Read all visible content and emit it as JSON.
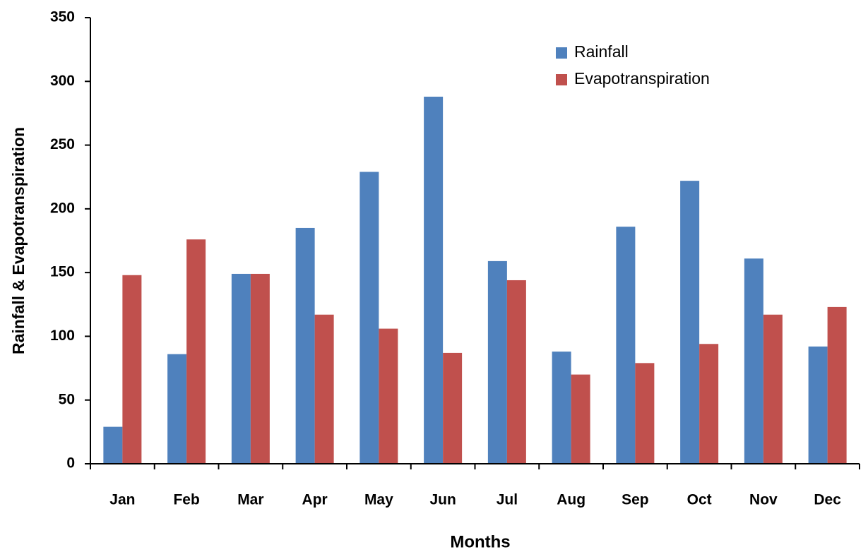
{
  "chart_data": {
    "type": "bar",
    "x_label": "Months",
    "y_label": "Rainfall & Evapotranspiration",
    "categories": [
      "Jan",
      "Feb",
      "Mar",
      "Apr",
      "May",
      "Jun",
      "Jul",
      "Aug",
      "Sep",
      "Oct",
      "Nov",
      "Dec"
    ],
    "series": [
      {
        "name": "Rainfall",
        "color": "#4f81bd",
        "values": [
          29,
          86,
          149,
          185,
          229,
          288,
          159,
          88,
          186,
          222,
          161,
          92
        ]
      },
      {
        "name": "Evapotranspiration",
        "color": "#c0504d",
        "values": [
          148,
          176,
          149,
          117,
          106,
          87,
          144,
          70,
          79,
          94,
          117,
          123
        ]
      }
    ],
    "ylim": [
      0,
      350
    ],
    "yticks": [
      0,
      50,
      100,
      150,
      200,
      250,
      300,
      350
    ],
    "grid": false,
    "legend": "top-right"
  }
}
